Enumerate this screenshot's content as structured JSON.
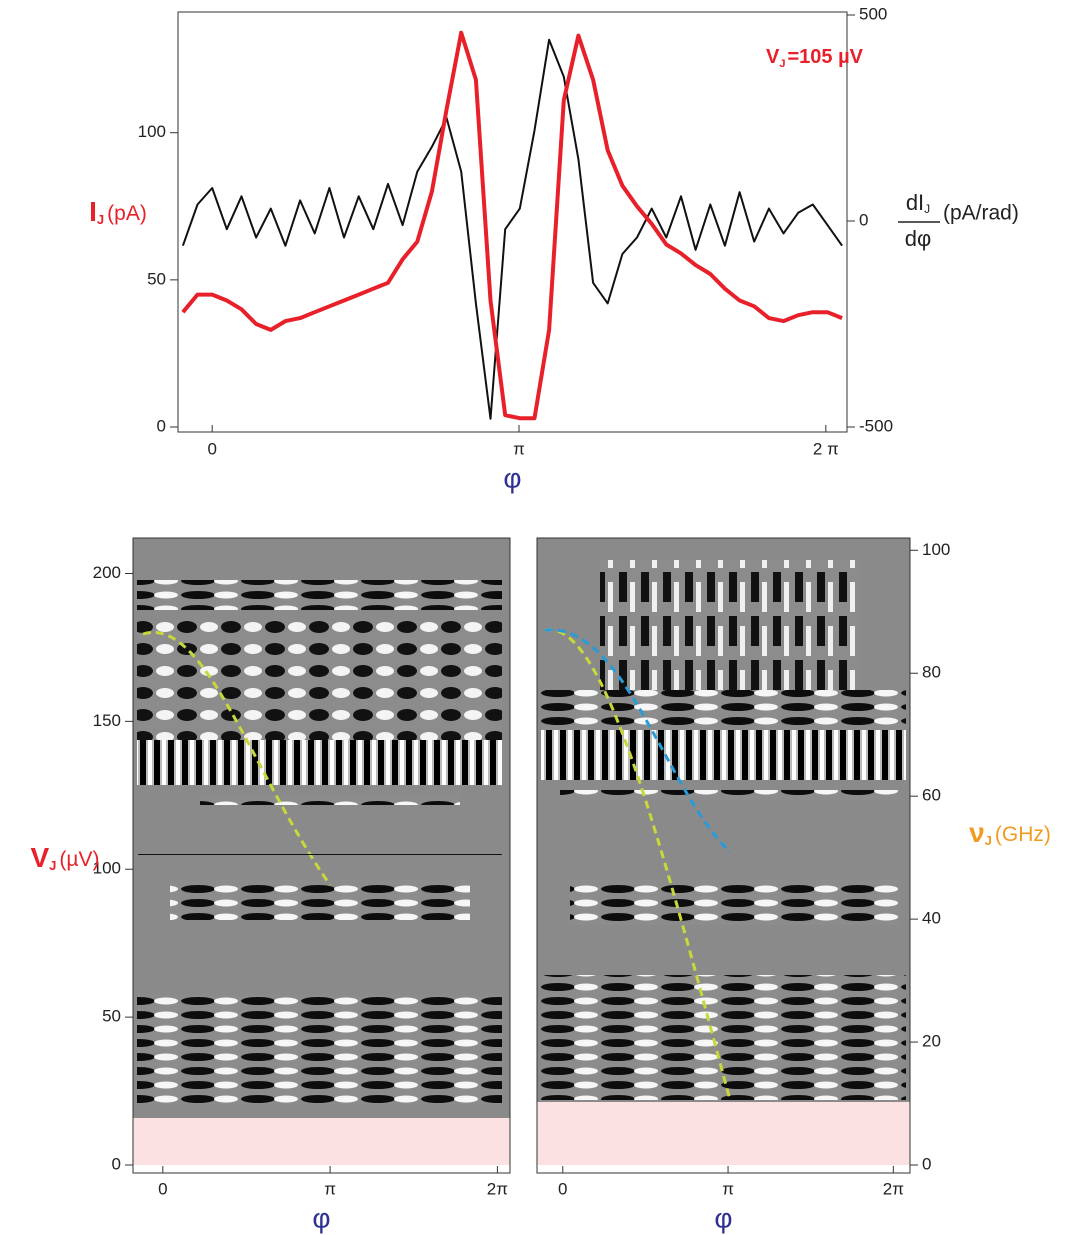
{
  "chart_data": [
    {
      "type": "line",
      "annotation": {
        "main": "V",
        "sub": "J",
        "rest": "=105 µV"
      },
      "xlabel": "φ",
      "ylabel": {
        "main": "I",
        "sub": "J",
        "unit": "(pA)"
      },
      "y2label": {
        "num": "dI",
        "sub": "J",
        "den": "dφ",
        "unit": "(pA/rad)"
      },
      "xlim": [
        -0.35,
        6.5
      ],
      "xticks": [
        0,
        {
          "value": 3.1416,
          "label": "π"
        },
        {
          "value": 6.2832,
          "label": "2 π"
        }
      ],
      "ylim": [
        0,
        140
      ],
      "yticks": [
        0,
        50,
        100
      ],
      "y2lim": [
        -500,
        500
      ],
      "y2ticks": [
        -500,
        0,
        500
      ],
      "x": [
        -0.3,
        -0.15,
        0,
        0.15,
        0.3,
        0.45,
        0.6,
        0.75,
        0.9,
        1.05,
        1.2,
        1.35,
        1.5,
        1.65,
        1.8,
        1.95,
        2.1,
        2.25,
        2.4,
        2.55,
        2.7,
        2.85,
        3.0,
        3.15,
        3.3,
        3.45,
        3.6,
        3.75,
        3.9,
        4.05,
        4.2,
        4.35,
        4.5,
        4.65,
        4.8,
        4.95,
        5.1,
        5.25,
        5.4,
        5.55,
        5.7,
        5.85,
        6.0,
        6.15,
        6.3,
        6.45
      ],
      "series": [
        {
          "name": "I_J",
          "color": "#e8202a",
          "width": 4,
          "values": [
            39,
            45,
            45,
            43,
            40,
            35,
            33,
            36,
            37,
            39,
            41,
            43,
            45,
            47,
            49,
            57,
            63,
            80,
            108,
            134,
            118,
            43,
            4,
            3,
            3,
            33,
            111,
            133,
            118,
            94,
            82,
            75,
            69,
            62,
            59,
            55,
            52,
            47,
            43,
            41,
            37,
            36,
            38,
            39,
            39,
            37
          ]
        },
        {
          "name": "dI_J/dφ",
          "color": "#111111",
          "width": 2,
          "axis": "y2",
          "values": [
            -60,
            40,
            80,
            -20,
            60,
            -40,
            30,
            -60,
            50,
            -30,
            80,
            -40,
            60,
            -20,
            90,
            -10,
            120,
            180,
            250,
            120,
            -200,
            -480,
            -20,
            30,
            220,
            440,
            350,
            150,
            -150,
            -200,
            -80,
            -40,
            30,
            -40,
            60,
            -70,
            40,
            -60,
            70,
            -50,
            30,
            -30,
            20,
            40,
            -10,
            -60
          ]
        }
      ]
    },
    {
      "type": "heatmap",
      "xlabel": "φ",
      "xlim": [
        -0.56,
        6.52
      ],
      "xticks": [
        0,
        {
          "value": 3.1416,
          "label": "π"
        },
        {
          "value": 6.2832,
          "label": "2π"
        }
      ],
      "ylim": [
        0,
        212
      ],
      "yticks": [
        0,
        50,
        100,
        150,
        200
      ],
      "ylabel": {
        "main": "V",
        "sub": "J",
        "unit": "(µV)"
      },
      "hline": 105
    },
    {
      "type": "heatmap",
      "xlabel": "φ",
      "xlim": [
        -0.49,
        6.6
      ],
      "xticks": [
        0,
        {
          "value": 3.1416,
          "label": "π"
        },
        {
          "value": 6.2832,
          "label": "2π"
        }
      ],
      "y2lim": [
        0,
        102
      ],
      "y2ticks": [
        0,
        20,
        40,
        60,
        80,
        100
      ],
      "y2label": {
        "main": "ν",
        "sub": "J",
        "unit": "(GHz)"
      }
    }
  ]
}
